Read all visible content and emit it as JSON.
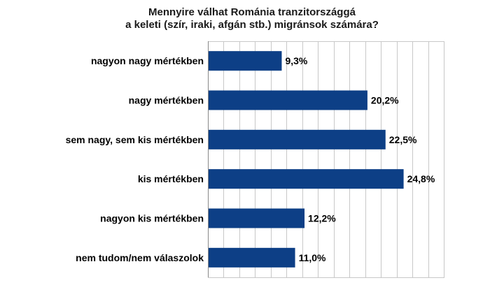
{
  "chart_data": {
    "type": "bar",
    "orientation": "horizontal",
    "title_lines": [
      "Mennyire válhat Románia tranzitországgá",
      "a keleti (szír, iraki, afgán stb.) migránsok számára?"
    ],
    "categories": [
      "nagyon nagy mértékben",
      "nagy mértékben",
      "sem nagy, sem kis mértékben",
      "kis mértékben",
      "nagyon kis mértékben",
      "nem tudom/nem válaszolok"
    ],
    "values": [
      9.3,
      20.2,
      22.5,
      24.8,
      12.2,
      11.0
    ],
    "value_labels": [
      "9,3%",
      "20,2%",
      "22,5%",
      "24,8%",
      "12,2%",
      "11,0%"
    ],
    "xlim": [
      0,
      30
    ],
    "grid": true,
    "bar_color": "#0d3f86",
    "grid_color": "#c8c8c8"
  }
}
